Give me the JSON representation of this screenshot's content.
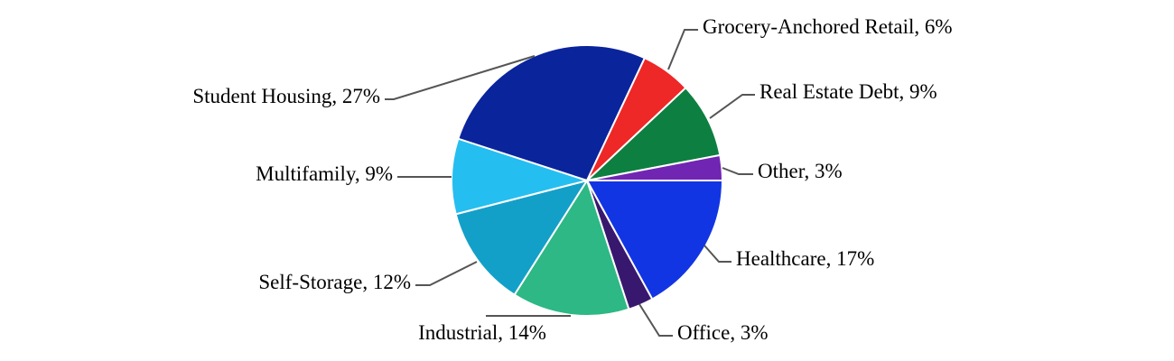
{
  "chart_data": {
    "type": "pie",
    "title": "",
    "unit": "%",
    "direction": "clockwise",
    "start": "3 o'clock",
    "slices": [
      {
        "label": "Healthcare, 17%",
        "category": "Healthcare",
        "value": 17,
        "color": "#1235E3"
      },
      {
        "label": "Office, 3%",
        "category": "Office",
        "value": 3,
        "color": "#38186E"
      },
      {
        "label": "Industrial, 14%",
        "category": "Industrial",
        "value": 14,
        "color": "#2DB885"
      },
      {
        "label": "Self-Storage, 12%",
        "category": "Self-Storage",
        "value": 12,
        "color": "#13A0C8"
      },
      {
        "label": "Multifamily, 9%",
        "category": "Multifamily",
        "value": 9,
        "color": "#25BEF0"
      },
      {
        "label": "Student Housing, 27%",
        "category": "Student Housing",
        "value": 27,
        "color": "#0A249C"
      },
      {
        "label": "Grocery-Anchored Retail, 6%",
        "category": "Grocery-Anchored Retail",
        "value": 6,
        "color": "#EE2727"
      },
      {
        "label": "Real Estate Debt, 9%",
        "category": "Real Estate Debt",
        "value": 9,
        "color": "#0D7F41"
      },
      {
        "label": "Other, 3%",
        "category": "Other",
        "value": 3,
        "color": "#7125B3"
      }
    ]
  }
}
